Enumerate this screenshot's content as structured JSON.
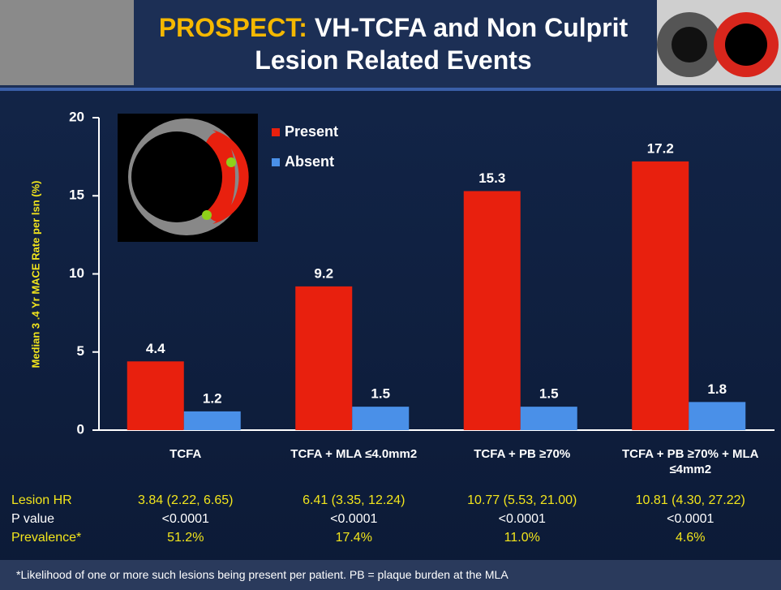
{
  "chart_data": {
    "type": "bar",
    "title_highlight": "PROSPECT:",
    "title": "VH-TCFA and Non Culprit Lesion Related Events",
    "ylabel": "Median 3 .4 Yr MACE Rate per lsn (%)",
    "categories": [
      "TCFA",
      "TCFA + MLA ≤4.0mm2",
      "TCFA + PB ≥70%",
      "TCFA + PB ≥70% + MLA ≤4mm2"
    ],
    "series": [
      {
        "name": "Present",
        "color": "#e8200e",
        "values": [
          4.4,
          9.2,
          15.3,
          17.2
        ]
      },
      {
        "name": "Absent",
        "color": "#4a90e8",
        "values": [
          1.2,
          1.5,
          1.5,
          1.8
        ]
      }
    ],
    "ylim": [
      0,
      20
    ],
    "yticks": [
      0,
      5,
      10,
      15,
      20
    ],
    "grid": false
  },
  "table": {
    "rows": [
      {
        "label": "Lesion HR",
        "color": "#f2e51c",
        "values": [
          "3.84 (2.22, 6.65)",
          "6.41 (3.35, 12.24)",
          "10.77 (5.53, 21.00)",
          "10.81 (4.30, 27.22)"
        ]
      },
      {
        "label": "P value",
        "color": "#ffffff",
        "values": [
          "<0.0001",
          "<0.0001",
          "<0.0001",
          "<0.0001"
        ]
      },
      {
        "label": "Prevalence*",
        "color": "#f2e51c",
        "values": [
          "51.2%",
          "17.4%",
          "11.0%",
          "4.6%"
        ]
      }
    ]
  },
  "footnote": "*Likelihood of one or more such lesions being present per patient. PB = plaque burden at the MLA"
}
